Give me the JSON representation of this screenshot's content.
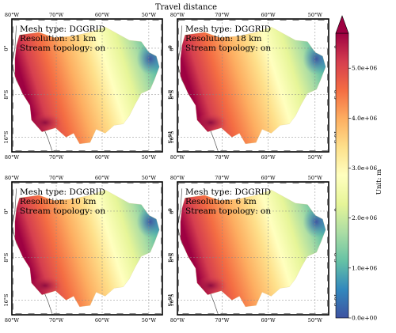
{
  "title": "Travel distance",
  "chart_data": [
    {
      "type": "heatmap",
      "panel": "top-left",
      "annotation": [
        "Mesh type: DGGRID",
        "Resolution: 31 km",
        "Stream topology: on"
      ],
      "mesh_type": "DGGRID",
      "resolution_km": 31,
      "stream_topology": "on",
      "xticks": [
        "80°W",
        "70°W",
        "60°W",
        "50°W"
      ],
      "yticks": [
        "0°",
        "8°S",
        "16°S"
      ]
    },
    {
      "type": "heatmap",
      "panel": "top-right",
      "annotation": [
        "Mesh type: DGGRID",
        "Resolution: 18 km",
        "Stream topology: on"
      ],
      "mesh_type": "DGGRID",
      "resolution_km": 18,
      "stream_topology": "on",
      "xticks": [
        "80°W",
        "70°W",
        "60°W",
        "50°W"
      ],
      "yticks": [
        "0°",
        "8°S",
        "16°S"
      ]
    },
    {
      "type": "heatmap",
      "panel": "bottom-left",
      "annotation": [
        "Mesh type: DGGRID",
        "Resolution: 10 km",
        "Stream topology: on"
      ],
      "mesh_type": "DGGRID",
      "resolution_km": 10,
      "stream_topology": "on",
      "xticks": [
        "80°W",
        "70°W",
        "60°W",
        "50°W"
      ],
      "yticks": [
        "0°",
        "8°S",
        "16°S"
      ]
    },
    {
      "type": "heatmap",
      "panel": "bottom-right",
      "annotation": [
        "Mesh type: DGGRID",
        "Resolution: 6 km",
        "Stream topology: on"
      ],
      "mesh_type": "DGGRID",
      "resolution_km": 6,
      "stream_topology": "on",
      "xticks": [
        "80°W",
        "70°W",
        "60°W",
        "50°W"
      ],
      "yticks": [
        "0°",
        "8°S",
        "16°S"
      ]
    }
  ],
  "colorbar": {
    "label": "Unit: m",
    "ticks": [
      "0.0e+00",
      "1.0e+06",
      "2.0e+06",
      "3.0e+06",
      "4.0e+06",
      "5.0e+06"
    ],
    "tick_values": [
      0,
      1000000,
      2000000,
      3000000,
      4000000,
      5000000
    ],
    "range": [
      0,
      5700000
    ],
    "colormap": "Spectral_r",
    "colors": [
      "#3e52a1",
      "#3288bd",
      "#66c2a5",
      "#abdda4",
      "#e6f598",
      "#ffffbf",
      "#fee08b",
      "#fdae61",
      "#f46d43",
      "#d53e4f",
      "#9e0142"
    ]
  }
}
